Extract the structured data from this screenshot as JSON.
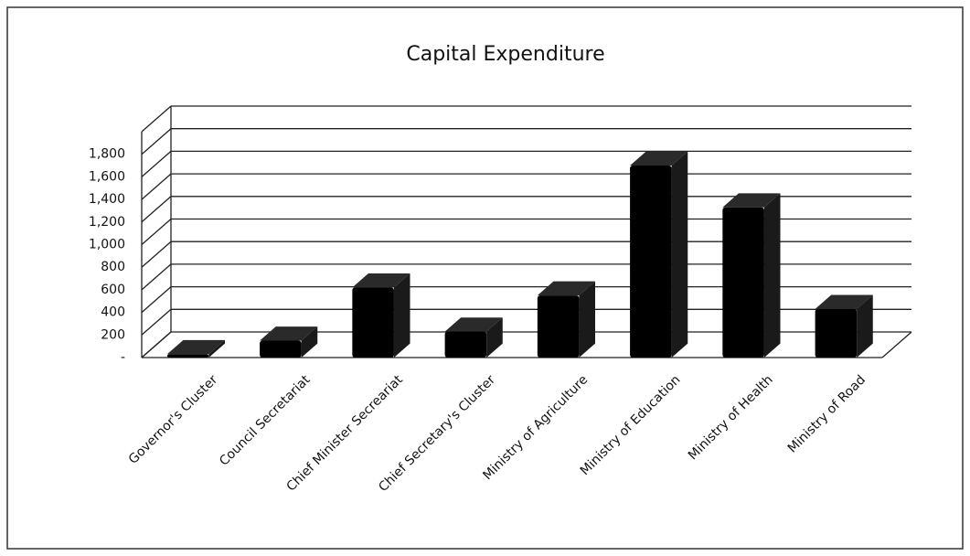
{
  "chart_data": {
    "type": "bar",
    "title": "Capital Expenditure",
    "categories": [
      "Governor's Cluster",
      "Council Secretariat",
      "Chief Minister Secreariat",
      "Chief Secretary's Cluster",
      "Ministry of Agriculture",
      "Ministry of Education",
      "Ministry of Health",
      "Ministry of Road"
    ],
    "values": [
      30,
      150,
      620,
      230,
      550,
      1700,
      1330,
      430
    ],
    "color": "#000000",
    "ylim": [
      0,
      2000
    ],
    "yticks": [
      {
        "value": 0,
        "label": "-"
      },
      200,
      400,
      600,
      800,
      {
        "value": 1000,
        "label": "1,000"
      },
      {
        "value": 1200,
        "label": "1,200"
      },
      {
        "value": 1400,
        "label": "1,400"
      },
      {
        "value": 1600,
        "label": "1,600"
      },
      {
        "value": 1800,
        "label": "1,800"
      }
    ],
    "grid": true
  }
}
